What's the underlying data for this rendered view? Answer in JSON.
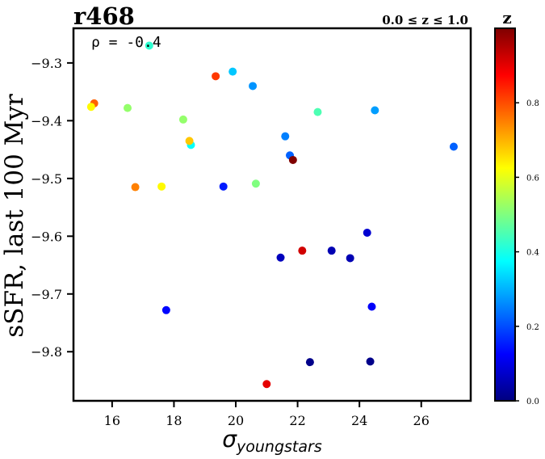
{
  "chart_data": {
    "type": "scatter",
    "title": "r468",
    "subtitle": "0.0 ≤ z ≤ 1.0",
    "annotation": "ρ = -0.4",
    "xlabel": "σyoungstars",
    "xlabel_parts": {
      "main": "σ",
      "sub": "youngstars"
    },
    "ylabel": "sSFR, last 100 Myr",
    "xlim": [
      14.75,
      27.6
    ],
    "ylim": [
      -9.885,
      -9.24
    ],
    "x_ticks": [
      16,
      18,
      20,
      22,
      24,
      26
    ],
    "x_tick_labels": [
      "16",
      "18",
      "20",
      "22",
      "24",
      "26"
    ],
    "y_ticks": [
      -9.3,
      -9.4,
      -9.5,
      -9.6,
      -9.7,
      -9.8
    ],
    "y_tick_labels": [
      "−9.3",
      "−9.4",
      "−9.5",
      "−9.6",
      "−9.7",
      "−9.8"
    ],
    "grid": false,
    "colorbar": {
      "label": "z",
      "colormap": "jet",
      "range": [
        0.0,
        1.0
      ],
      "ticks": [
        0.0,
        0.2,
        0.4,
        0.6,
        0.8
      ],
      "tick_labels": [
        "0.0",
        "0.2",
        "0.4",
        "0.6",
        "0.8"
      ]
    },
    "points": [
      {
        "x": 17.2,
        "y": -9.27,
        "z": 0.42
      },
      {
        "x": 19.9,
        "y": -9.315,
        "z": 0.32
      },
      {
        "x": 19.35,
        "y": -9.323,
        "z": 0.82
      },
      {
        "x": 20.55,
        "y": -9.34,
        "z": 0.27
      },
      {
        "x": 15.42,
        "y": -9.37,
        "z": 0.78
      },
      {
        "x": 15.32,
        "y": -9.376,
        "z": 0.63
      },
      {
        "x": 16.5,
        "y": -9.378,
        "z": 0.52
      },
      {
        "x": 24.5,
        "y": -9.382,
        "z": 0.28
      },
      {
        "x": 22.65,
        "y": -9.385,
        "z": 0.45
      },
      {
        "x": 18.3,
        "y": -9.398,
        "z": 0.52
      },
      {
        "x": 21.6,
        "y": -9.427,
        "z": 0.25
      },
      {
        "x": 18.55,
        "y": -9.442,
        "z": 0.38
      },
      {
        "x": 18.5,
        "y": -9.435,
        "z": 0.68
      },
      {
        "x": 27.05,
        "y": -9.445,
        "z": 0.22
      },
      {
        "x": 21.75,
        "y": -9.46,
        "z": 0.22
      },
      {
        "x": 21.85,
        "y": -9.468,
        "z": 1.0
      },
      {
        "x": 16.75,
        "y": -9.515,
        "z": 0.75
      },
      {
        "x": 17.6,
        "y": -9.514,
        "z": 0.63
      },
      {
        "x": 20.65,
        "y": -9.509,
        "z": 0.5
      },
      {
        "x": 19.6,
        "y": -9.514,
        "z": 0.15
      },
      {
        "x": 24.25,
        "y": -9.594,
        "z": 0.08
      },
      {
        "x": 22.15,
        "y": -9.625,
        "z": 0.92
      },
      {
        "x": 23.1,
        "y": -9.625,
        "z": 0.05
      },
      {
        "x": 21.45,
        "y": -9.637,
        "z": 0.06
      },
      {
        "x": 23.7,
        "y": -9.638,
        "z": 0.05
      },
      {
        "x": 17.75,
        "y": -9.728,
        "z": 0.13
      },
      {
        "x": 24.4,
        "y": -9.722,
        "z": 0.12
      },
      {
        "x": 22.4,
        "y": -9.818,
        "z": 0.01
      },
      {
        "x": 24.35,
        "y": -9.817,
        "z": 0.01
      },
      {
        "x": 21.0,
        "y": -9.856,
        "z": 0.9
      }
    ]
  }
}
